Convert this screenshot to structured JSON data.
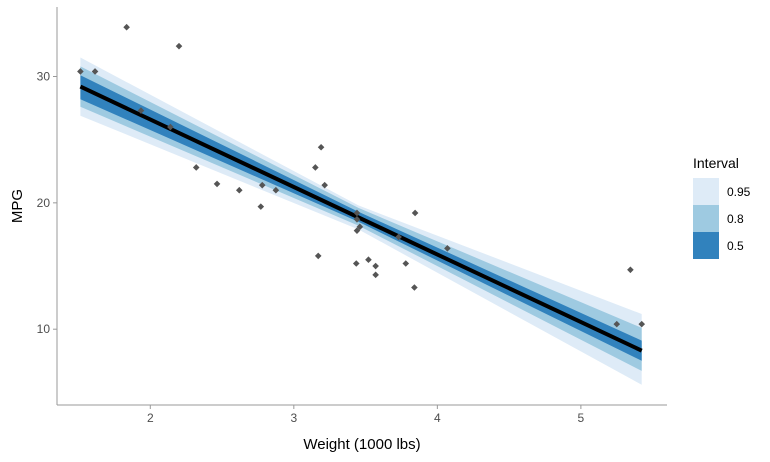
{
  "chart_data": {
    "type": "scatter",
    "title": "",
    "xlabel": "Weight (1000 lbs)",
    "ylabel": "MPG",
    "xlim": [
      1.35,
      5.6
    ],
    "ylim": [
      4.0,
      35.5
    ],
    "xticks": [
      2,
      3,
      4,
      5
    ],
    "yticks": [
      10,
      20,
      30
    ],
    "grid": false,
    "legend": {
      "title": "Interval",
      "placement": "right",
      "entries": [
        {
          "label": "0.95",
          "color": "#deebf7"
        },
        {
          "label": "0.8",
          "color": "#9ecae1"
        },
        {
          "label": "0.5",
          "color": "#3182bd"
        }
      ]
    },
    "fit_line": {
      "x": [
        1.513,
        5.424
      ],
      "y": [
        29.2,
        8.3
      ],
      "color": "#000000"
    },
    "bands": [
      {
        "level": "0.95",
        "color": "#deebf7",
        "x": [
          1.513,
          3.45,
          5.424
        ],
        "lower": [
          26.9,
          17.9,
          5.6
        ],
        "upper": [
          31.5,
          19.8,
          11.2
        ]
      },
      {
        "level": "0.8",
        "color": "#9ecae1",
        "x": [
          1.513,
          3.45,
          5.424
        ],
        "lower": [
          27.6,
          18.2,
          6.7
        ],
        "upper": [
          30.8,
          19.6,
          10.1
        ]
      },
      {
        "level": "0.5",
        "color": "#3182bd",
        "x": [
          1.513,
          3.45,
          5.424
        ],
        "lower": [
          28.2,
          18.5,
          7.5
        ],
        "upper": [
          30.1,
          19.3,
          9.1
        ]
      }
    ],
    "points": {
      "color": "#555555",
      "x": [
        2.62,
        2.875,
        2.32,
        3.215,
        3.44,
        3.46,
        3.57,
        3.19,
        3.15,
        3.44,
        3.44,
        4.07,
        3.73,
        3.78,
        5.25,
        5.424,
        5.345,
        2.2,
        1.615,
        1.835,
        2.465,
        3.52,
        3.435,
        3.84,
        3.845,
        1.935,
        2.14,
        1.513,
        3.17,
        2.77,
        3.57,
        2.78
      ],
      "y": [
        21.0,
        21.0,
        22.8,
        21.4,
        18.7,
        18.1,
        14.3,
        24.4,
        22.8,
        19.2,
        17.8,
        16.4,
        17.3,
        15.2,
        10.4,
        10.4,
        14.7,
        32.4,
        30.4,
        33.9,
        21.5,
        15.5,
        15.2,
        13.3,
        19.2,
        27.3,
        26.0,
        30.4,
        15.8,
        19.7,
        15.0,
        21.4
      ]
    }
  }
}
